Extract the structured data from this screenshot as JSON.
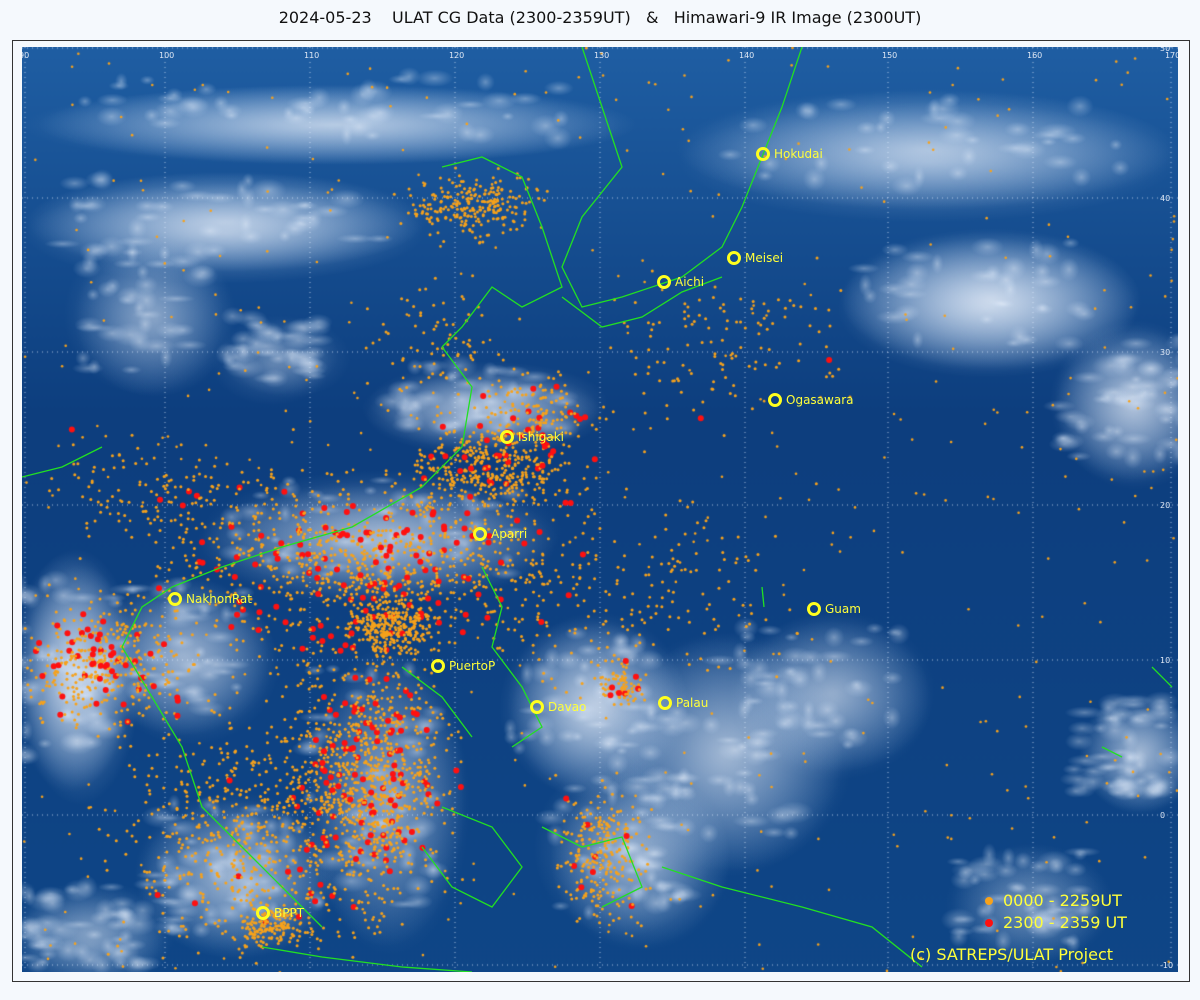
{
  "title": "2024-05-23    ULAT CG Data (2300-2359UT)   &   Himawari-9 IR Image (2300UT)",
  "longitude_ticks": [
    "90",
    "100",
    "110",
    "120",
    "130",
    "140",
    "150",
    "160",
    "170"
  ],
  "latitude_ticks": [
    "50",
    "40",
    "30",
    "20",
    "10",
    "0",
    "-10"
  ],
  "stations": [
    {
      "name": "Hokudai"
    },
    {
      "name": "Meisei"
    },
    {
      "name": "Aichi"
    },
    {
      "name": "Ogasawara"
    },
    {
      "name": "Ishigaki"
    },
    {
      "name": "Aparri"
    },
    {
      "name": "NakhonRat"
    },
    {
      "name": "Guam"
    },
    {
      "name": "PuertoP"
    },
    {
      "name": "Davao"
    },
    {
      "name": "Palau"
    },
    {
      "name": "BPPT"
    }
  ],
  "legend": {
    "items": [
      {
        "label": "0000 - 2259UT",
        "color": "#f7a21b"
      },
      {
        "label": "2300 - 2359 UT",
        "color": "#ff1010"
      }
    ]
  },
  "copyright": "(c) SATREPS/ULAT Project",
  "colors": {
    "ocean": "#0a3a78",
    "coastline": "#22e022",
    "station": "#ffff1e",
    "grid": "#dfe8f5"
  }
}
